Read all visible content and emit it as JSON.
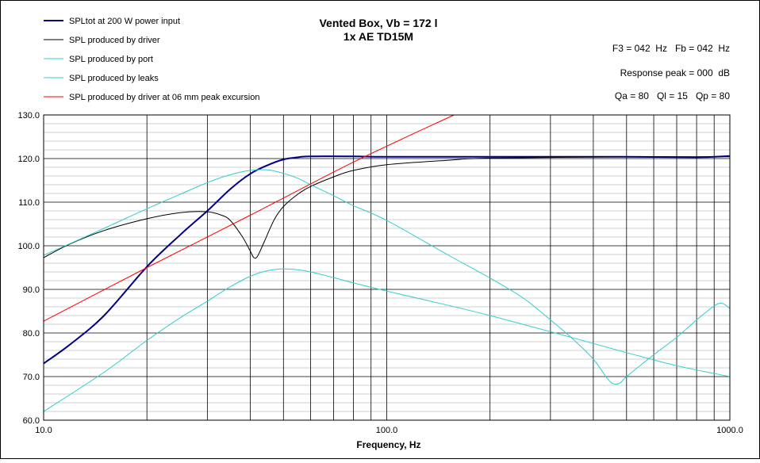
{
  "chart_data": {
    "type": "line",
    "title_line1": "Vented Box, Vb = 172 l",
    "title_line2": "1x AE TD15M",
    "info_lines": [
      "F3 = 042  Hz   Fb = 042  Hz",
      "Response peak = 000  dB",
      "Qa = 80   Ql = 15   Qp = 80"
    ],
    "xlabel": "Frequency, Hz",
    "ylabel": "",
    "x_scale": "log",
    "xlim": [
      10,
      1000
    ],
    "ylim": [
      60,
      130
    ],
    "x_tick_labels": [
      "10.0",
      "100.0",
      "1000.0"
    ],
    "x_ticks": [
      10,
      100,
      1000
    ],
    "y_ticks": [
      60,
      70,
      80,
      90,
      100,
      110,
      120,
      130
    ],
    "y_tick_labels": [
      "60.0",
      "70.0",
      "80.0",
      "90.0",
      "100.0",
      "110.0",
      "120.0",
      "130.0"
    ],
    "grid": true,
    "legend_position": "top-left",
    "series": [
      {
        "name": "SPLtot at 200 W power input",
        "color": "#000080",
        "width": 2,
        "points": [
          [
            10,
            73
          ],
          [
            12,
            77.5
          ],
          [
            15,
            84
          ],
          [
            20,
            95.2
          ],
          [
            25,
            102.5
          ],
          [
            30,
            108
          ],
          [
            35,
            113
          ],
          [
            40,
            116.5
          ],
          [
            45,
            118.5
          ],
          [
            50,
            119.8
          ],
          [
            55,
            120.3
          ],
          [
            60,
            120.5
          ],
          [
            80,
            120.5
          ],
          [
            100,
            120.4
          ],
          [
            200,
            120.4
          ],
          [
            500,
            120.4
          ],
          [
            800,
            120.3
          ],
          [
            1000,
            120.6
          ]
        ]
      },
      {
        "name": "SPL produced by driver",
        "color": "#000000",
        "width": 1,
        "points": [
          [
            10,
            97.3
          ],
          [
            12,
            100.5
          ],
          [
            15,
            103.5
          ],
          [
            20,
            106.2
          ],
          [
            25,
            107.6
          ],
          [
            30,
            107.8
          ],
          [
            33,
            107
          ],
          [
            35,
            105.8
          ],
          [
            38,
            102
          ],
          [
            40,
            98.8
          ],
          [
            41,
            97.3
          ],
          [
            42,
            97.6
          ],
          [
            44,
            101
          ],
          [
            47,
            106
          ],
          [
            50,
            109
          ],
          [
            55,
            111.8
          ],
          [
            60,
            113.6
          ],
          [
            70,
            115.8
          ],
          [
            80,
            117.3
          ],
          [
            100,
            118.6
          ],
          [
            150,
            119.6
          ],
          [
            200,
            120.1
          ],
          [
            500,
            120.4
          ],
          [
            1000,
            120.4
          ]
        ]
      },
      {
        "name": "SPL produced by port",
        "color": "#33CCCC",
        "width": 1,
        "points": [
          [
            10,
            97.8
          ],
          [
            15,
            104
          ],
          [
            20,
            108.5
          ],
          [
            25,
            111.8
          ],
          [
            30,
            114.5
          ],
          [
            35,
            116.3
          ],
          [
            40,
            117.3
          ],
          [
            45,
            117.4
          ],
          [
            50,
            116.6
          ],
          [
            55,
            115.5
          ],
          [
            60,
            114
          ],
          [
            70,
            111.5
          ],
          [
            80,
            109.2
          ],
          [
            100,
            105.8
          ],
          [
            150,
            98
          ],
          [
            200,
            92.6
          ],
          [
            250,
            88
          ],
          [
            300,
            83
          ],
          [
            350,
            78.5
          ],
          [
            400,
            74
          ],
          [
            440,
            69.5
          ],
          [
            460,
            68.3
          ],
          [
            480,
            68.6
          ],
          [
            500,
            70
          ],
          [
            600,
            75
          ],
          [
            700,
            79
          ],
          [
            800,
            83
          ],
          [
            900,
            86.2
          ],
          [
            950,
            86.8
          ],
          [
            1000,
            85.6
          ]
        ]
      },
      {
        "name": "SPL produced by leaks",
        "color": "#33CCCC",
        "width": 1,
        "points": [
          [
            10,
            62
          ],
          [
            15,
            71
          ],
          [
            20,
            78.3
          ],
          [
            25,
            83.5
          ],
          [
            30,
            87.3
          ],
          [
            35,
            90.6
          ],
          [
            40,
            93
          ],
          [
            45,
            94.3
          ],
          [
            50,
            94.7
          ],
          [
            55,
            94.5
          ],
          [
            60,
            94
          ],
          [
            70,
            92.7
          ],
          [
            80,
            91.5
          ],
          [
            100,
            89.6
          ],
          [
            150,
            86.4
          ],
          [
            200,
            84
          ],
          [
            300,
            80.3
          ],
          [
            500,
            75.5
          ],
          [
            700,
            72.5
          ],
          [
            1000,
            70
          ]
        ]
      },
      {
        "name": "SPL produced by driver at 06 mm peak excursion",
        "color": "#FF0000",
        "width": 1,
        "points": [
          [
            10,
            82.7
          ],
          [
            20,
            95
          ],
          [
            40,
            107
          ],
          [
            80,
            119.2
          ],
          [
            157,
            130
          ]
        ]
      }
    ]
  }
}
